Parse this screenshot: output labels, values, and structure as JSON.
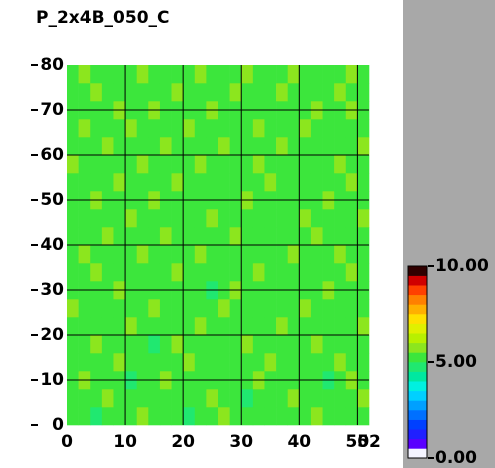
{
  "chart_data": {
    "type": "heatmap",
    "title": "P_2x4B_050_C",
    "xlim": [
      0,
      52
    ],
    "ylim": [
      0,
      80
    ],
    "zlim": [
      0,
      10
    ],
    "xticks": [
      0,
      10,
      20,
      30,
      40,
      50,
      52
    ],
    "yticks": [
      0,
      10,
      20,
      30,
      40,
      50,
      60,
      70,
      80
    ],
    "colorbar_ticks": [
      {
        "value": 0,
        "label": "0.00"
      },
      {
        "value": 5,
        "label": "5.00"
      },
      {
        "value": 10,
        "label": "10.00"
      }
    ],
    "grid": true,
    "colorscale": [
      "#f4f4ff",
      "#5a00ff",
      "#2020ff",
      "#0040ff",
      "#0070ff",
      "#00a0ff",
      "#00d0ff",
      "#00f0e0",
      "#00e8a0",
      "#20e870",
      "#3ce63c",
      "#8ce61e",
      "#b8f000",
      "#e0f000",
      "#ffe000",
      "#ffb000",
      "#ff8000",
      "#ff4000",
      "#d00000",
      "#300000"
    ],
    "z": [
      [
        5.2,
        5.3,
        4.9,
        5.2,
        5.4,
        5.2,
        5.7,
        5.1,
        5.3,
        5.2,
        4.8,
        5.3,
        5.2,
        5.6,
        5.2,
        5.3,
        5.1,
        5.2,
        5.4,
        5.2,
        5.3,
        5.7,
        5.2,
        5.1,
        5.3,
        5.2
      ],
      [
        5.3,
        5.1,
        5.2,
        5.6,
        5.2,
        5.3,
        5.2,
        5.4,
        5.1,
        5.2,
        5.3,
        5.2,
        5.7,
        5.1,
        5.3,
        4.9,
        5.2,
        5.3,
        5.2,
        5.6,
        5.1,
        5.2,
        5.3,
        5.4,
        5.2,
        5.6
      ],
      [
        5.1,
        5.6,
        5.3,
        5.2,
        5.1,
        4.9,
        5.3,
        5.2,
        5.6,
        5.3,
        5.2,
        5.1,
        5.3,
        5.2,
        5.4,
        5.2,
        5.7,
        5.1,
        5.3,
        5.2,
        5.2,
        5.3,
        4.9,
        5.2,
        5.6,
        5.3
      ],
      [
        5.4,
        5.2,
        5.2,
        5.3,
        5.7,
        5.2,
        5.1,
        5.3,
        5.2,
        5.2,
        5.6,
        5.3,
        5.2,
        5.1,
        5.3,
        5.2,
        5.2,
        5.6,
        5.1,
        5.3,
        5.4,
        5.2,
        5.2,
        5.7,
        5.3,
        5.1
      ],
      [
        5.2,
        5.3,
        5.6,
        5.1,
        5.2,
        5.3,
        5.2,
        4.8,
        5.3,
        5.7,
        5.2,
        5.2,
        5.1,
        5.4,
        5.2,
        5.6,
        5.3,
        5.2,
        5.2,
        5.1,
        5.3,
        5.6,
        5.2,
        5.3,
        5.1,
        5.2
      ],
      [
        5.3,
        5.2,
        5.1,
        5.2,
        5.3,
        5.6,
        5.2,
        5.3,
        5.1,
        5.2,
        5.3,
        5.7,
        5.2,
        5.3,
        5.1,
        5.2,
        5.4,
        5.3,
        5.6,
        5.2,
        5.1,
        5.3,
        5.2,
        5.2,
        5.4,
        5.6
      ],
      [
        5.6,
        5.1,
        5.3,
        5.4,
        5.2,
        5.1,
        5.3,
        5.6,
        5.2,
        5.3,
        5.1,
        5.2,
        5.3,
        5.6,
        5.2,
        5.3,
        5.2,
        5.1,
        5.3,
        5.2,
        5.7,
        5.2,
        5.1,
        5.3,
        5.2,
        5.3
      ],
      [
        5.2,
        5.3,
        5.2,
        5.1,
        5.6,
        5.3,
        5.2,
        5.2,
        5.4,
        5.1,
        5.3,
        5.2,
        4.9,
        5.2,
        5.6,
        5.1,
        5.3,
        5.2,
        5.2,
        5.4,
        5.3,
        5.1,
        5.6,
        5.2,
        5.3,
        5.2
      ],
      [
        5.1,
        5.2,
        5.7,
        5.3,
        5.2,
        5.2,
        5.1,
        5.3,
        5.2,
        5.6,
        5.2,
        5.3,
        5.2,
        5.1,
        5.3,
        5.2,
        5.6,
        5.3,
        5.1,
        5.2,
        5.3,
        5.2,
        5.3,
        5.1,
        5.6,
        5.2
      ],
      [
        5.3,
        5.6,
        5.2,
        5.2,
        5.1,
        5.3,
        5.6,
        5.2,
        5.3,
        5.1,
        5.2,
        5.6,
        5.3,
        5.2,
        5.2,
        5.4,
        5.1,
        5.2,
        5.3,
        5.6,
        5.2,
        5.3,
        5.2,
        5.6,
        5.1,
        5.3
      ],
      [
        5.2,
        5.1,
        5.3,
        5.6,
        5.3,
        5.2,
        5.2,
        5.1,
        5.7,
        5.3,
        5.2,
        5.1,
        5.2,
        5.3,
        5.6,
        5.2,
        5.3,
        5.2,
        5.1,
        5.3,
        5.2,
        5.6,
        5.3,
        5.2,
        5.2,
        5.1
      ],
      [
        5.4,
        5.3,
        5.2,
        5.1,
        5.2,
        5.6,
        5.3,
        5.2,
        5.2,
        5.1,
        5.3,
        5.2,
        5.6,
        5.2,
        5.1,
        5.3,
        5.2,
        5.4,
        5.2,
        5.1,
        5.6,
        5.2,
        5.1,
        5.3,
        5.2,
        5.7
      ],
      [
        5.2,
        5.2,
        5.6,
        5.3,
        5.1,
        5.2,
        5.3,
        5.6,
        5.1,
        5.2,
        5.3,
        5.2,
        5.1,
        5.3,
        5.2,
        5.6,
        5.2,
        5.3,
        5.2,
        5.2,
        5.1,
        5.3,
        5.6,
        5.2,
        5.3,
        5.2
      ],
      [
        5.1,
        5.3,
        5.2,
        5.2,
        5.6,
        5.3,
        5.1,
        5.2,
        5.3,
        5.6,
        5.2,
        5.1,
        5.3,
        5.2,
        5.3,
        5.2,
        5.1,
        5.6,
        5.3,
        5.2,
        5.3,
        5.2,
        5.2,
        5.1,
        5.6,
        5.3
      ],
      [
        5.6,
        5.2,
        5.3,
        5.1,
        5.2,
        5.2,
        5.6,
        5.3,
        5.2,
        5.1,
        5.3,
        5.6,
        5.2,
        5.2,
        5.1,
        5.3,
        5.7,
        5.2,
        5.1,
        5.3,
        5.2,
        5.2,
        5.3,
        5.6,
        5.2,
        5.1
      ],
      [
        5.3,
        5.1,
        5.2,
        5.6,
        5.3,
        5.1,
        5.2,
        5.2,
        5.6,
        5.3,
        5.2,
        5.2,
        5.3,
        5.6,
        5.2,
        5.1,
        5.2,
        5.3,
        5.6,
        5.2,
        5.1,
        5.3,
        5.2,
        5.2,
        5.3,
        5.6
      ],
      [
        5.2,
        5.6,
        5.1,
        5.2,
        5.3,
        5.7,
        5.2,
        5.1,
        5.3,
        5.2,
        5.6,
        5.3,
        5.1,
        5.2,
        5.3,
        5.2,
        5.6,
        5.1,
        5.2,
        5.3,
        5.6,
        5.2,
        5.3,
        5.1,
        5.2,
        5.3
      ],
      [
        5.3,
        5.2,
        5.3,
        5.1,
        5.6,
        5.2,
        5.3,
        5.6,
        5.2,
        5.1,
        5.2,
        5.3,
        5.6,
        5.2,
        5.1,
        5.3,
        5.2,
        5.2,
        5.3,
        5.1,
        5.2,
        5.6,
        5.2,
        5.3,
        5.6,
        5.2
      ],
      [
        5.1,
        5.3,
        5.6,
        5.2,
        5.2,
        5.1,
        5.3,
        5.2,
        5.3,
        5.6,
        5.1,
        5.2,
        5.3,
        5.1,
        5.6,
        5.2,
        5.3,
        5.1,
        5.6,
        5.2,
        5.3,
        5.2,
        5.1,
        5.6,
        5.3,
        5.2
      ],
      [
        5.2,
        5.6,
        5.2,
        5.3,
        5.1,
        5.3,
        5.6,
        5.2,
        5.1,
        5.3,
        5.2,
        5.6,
        5.2,
        5.3,
        5.2,
        5.6,
        5.1,
        5.3,
        5.2,
        5.6,
        5.2,
        5.1,
        5.3,
        5.2,
        5.6,
        5.3
      ]
    ]
  }
}
